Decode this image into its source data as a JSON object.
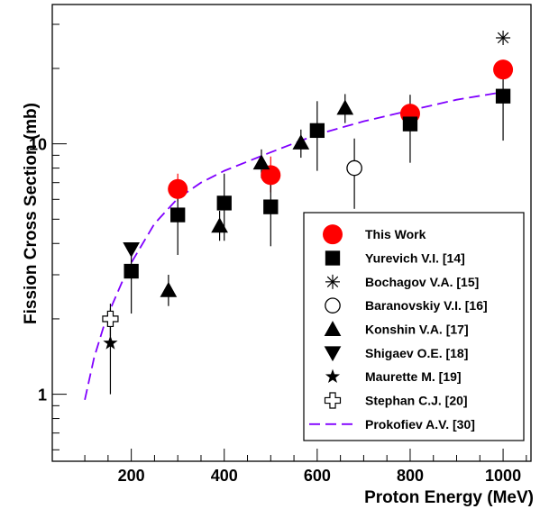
{
  "chart_data": {
    "type": "scatter",
    "xlabel": "Proton Energy (MeV)",
    "ylabel": "Fission Cross Section (mb)",
    "xlim": [
      30,
      1060
    ],
    "ylim": [
      0.54,
      36
    ],
    "y_scale": "log",
    "x_ticks": [
      200,
      400,
      600,
      800,
      1000
    ],
    "x_tick_labels": [
      "200",
      "400",
      "600",
      "800",
      "1000"
    ],
    "y_ticks": [
      1,
      10
    ],
    "y_tick_labels": [
      "1",
      "10"
    ],
    "grid": false,
    "legend_position": "bottom-right",
    "series": [
      {
        "name": "This Work",
        "marker": "circle-filled",
        "color": "#ff0000",
        "points": [
          {
            "x": 300,
            "y": 6.6,
            "ylo": 5.9,
            "yhi": 7.6
          },
          {
            "x": 500,
            "y": 7.5,
            "ylo": 6.4,
            "yhi": 8.9
          },
          {
            "x": 800,
            "y": 13.2,
            "ylo": 12.1,
            "yhi": 14.3
          },
          {
            "x": 1000,
            "y": 19.8,
            "ylo": 18.2,
            "yhi": 21.5
          }
        ]
      },
      {
        "name": "Yurevich V.I. [14]",
        "marker": "square-filled",
        "color": "#000000",
        "points": [
          {
            "x": 200,
            "y": 3.1,
            "ylo": 2.1,
            "yhi": 4.0
          },
          {
            "x": 300,
            "y": 5.2,
            "ylo": 3.6,
            "yhi": 6.9
          },
          {
            "x": 400,
            "y": 5.8,
            "ylo": 4.1,
            "yhi": 7.6
          },
          {
            "x": 500,
            "y": 5.6,
            "ylo": 3.9,
            "yhi": 7.3
          },
          {
            "x": 600,
            "y": 11.3,
            "ylo": 7.8,
            "yhi": 14.8
          },
          {
            "x": 800,
            "y": 12.0,
            "ylo": 8.4,
            "yhi": 15.7
          },
          {
            "x": 1000,
            "y": 15.5,
            "ylo": 10.3,
            "yhi": 20.8
          }
        ]
      },
      {
        "name": "Bochagov V.A. [15]",
        "marker": "asterisk",
        "color": "#000000",
        "points": [
          {
            "x": 1000,
            "y": 26.5
          }
        ]
      },
      {
        "name": "Baranovskiy V.I. [16]",
        "marker": "circle-open",
        "color": "#000000",
        "points": [
          {
            "x": 680,
            "y": 8.0,
            "ylo": 5.5,
            "yhi": 10.5
          }
        ]
      },
      {
        "name": "Konshin V.A. [17]",
        "marker": "triangle-up",
        "color": "#000000",
        "points": [
          {
            "x": 280,
            "y": 2.6,
            "ylo": 2.25,
            "yhi": 3.0
          },
          {
            "x": 390,
            "y": 4.7,
            "ylo": 4.1,
            "yhi": 5.4
          },
          {
            "x": 480,
            "y": 8.4,
            "ylo": 7.3,
            "yhi": 9.5
          },
          {
            "x": 565,
            "y": 10.1,
            "ylo": 8.8,
            "yhi": 11.4
          },
          {
            "x": 660,
            "y": 13.9,
            "ylo": 12.1,
            "yhi": 15.8
          }
        ]
      },
      {
        "name": "Shigaev O.E. [18]",
        "marker": "triangle-down",
        "color": "#000000",
        "points": [
          {
            "x": 200,
            "y": 3.8
          }
        ]
      },
      {
        "name": "Maurette M. [19]",
        "marker": "star",
        "color": "#000000",
        "points": [
          {
            "x": 155,
            "y": 1.6,
            "ylo": 1.0,
            "yhi": 2.2
          }
        ]
      },
      {
        "name": "Stephan C.J. [20]",
        "marker": "cross-open",
        "color": "#000000",
        "points": [
          {
            "x": 155,
            "y": 2.0,
            "ylo": 1.7,
            "yhi": 2.3
          }
        ]
      },
      {
        "name": "Prokofiev A.V. [30]",
        "marker": "dashed-line",
        "color": "#8000ff",
        "x": [
          100,
          120,
          140,
          160,
          180,
          200,
          250,
          300,
          350,
          400,
          500,
          600,
          700,
          800,
          900,
          1000
        ],
        "y": [
          0.95,
          1.4,
          1.85,
          2.3,
          2.8,
          3.35,
          4.8,
          6.05,
          7.0,
          7.8,
          9.25,
          10.9,
          12.3,
          13.6,
          15.0,
          16.1
        ]
      }
    ]
  }
}
